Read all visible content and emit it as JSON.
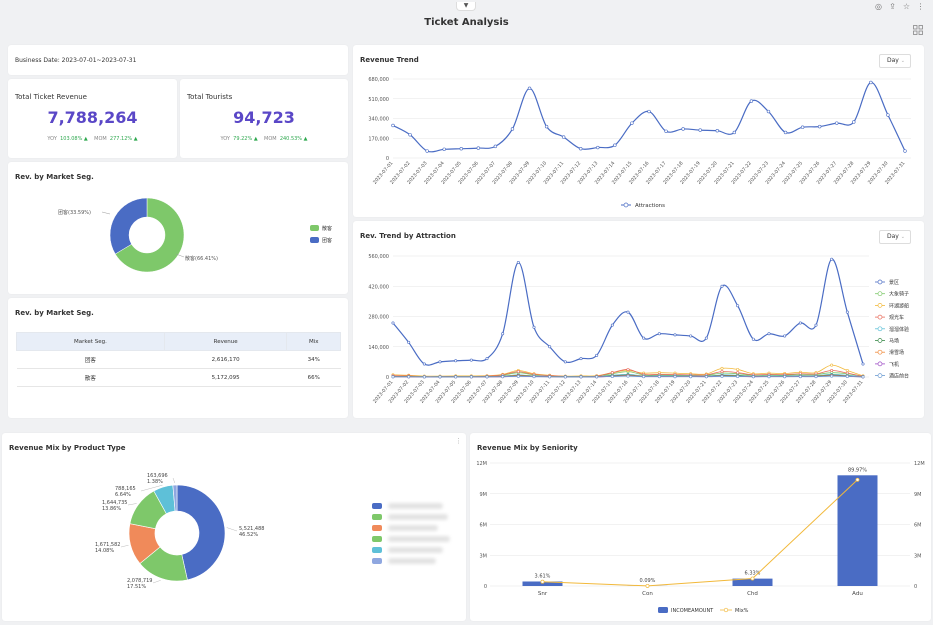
{
  "page": {
    "title": "Ticket Analysis"
  },
  "business_date": {
    "label": "Business Date:",
    "value": "2023-07-01~2023-07-31"
  },
  "kpis": [
    {
      "title": "Total Ticket Revenue",
      "value": "7,788,264",
      "yoy_label": "YOY",
      "yoy": "103.08%",
      "mom_label": "MOM",
      "mom": "277.12%"
    },
    {
      "title": "Total Tourists",
      "value": "94,723",
      "yoy_label": "YOY",
      "yoy": "79.22%",
      "mom_label": "MOM",
      "mom": "240.53%"
    }
  ],
  "market_seg_donut": {
    "title": "Rev. by Market Seg.",
    "label_a": "团客(33.59%)",
    "label_b": "散客(66.41%)",
    "legend": [
      "散客",
      "团客"
    ]
  },
  "market_seg_table": {
    "title": "Rev. by Market Seg.",
    "headers": [
      "Market Seg.",
      "Revenue",
      "Mix"
    ],
    "rows": [
      [
        "团客",
        "2,616,170",
        "34%"
      ],
      [
        "散客",
        "5,172,095",
        "66%"
      ]
    ]
  },
  "revenue_trend": {
    "title": "Revenue Trend",
    "granularity": "Day"
  },
  "attraction_trend": {
    "title": "Rev. Trend by Attraction",
    "granularity": "Day"
  },
  "product_mix": {
    "title": "Revenue Mix by Product Type",
    "more": "⋮"
  },
  "seniority_mix": {
    "title": "Revenue Mix by Seniority"
  },
  "colors": {
    "primary": "#4a6cc4",
    "purple_kpi": "#5a47c7",
    "green": "#2fa84f",
    "orange": "#f2b93b"
  },
  "chart_data": [
    {
      "type": "line",
      "title": "Revenue Trend",
      "x": [
        "2023-07-01",
        "2023-07-02",
        "2023-07-03",
        "2023-07-04",
        "2023-07-05",
        "2023-07-06",
        "2023-07-07",
        "2023-07-08",
        "2023-07-09",
        "2023-07-10",
        "2023-07-11",
        "2023-07-12",
        "2023-07-13",
        "2023-07-14",
        "2023-07-15",
        "2023-07-16",
        "2023-07-17",
        "2023-07-18",
        "2023-07-19",
        "2023-07-20",
        "2023-07-21",
        "2023-07-22",
        "2023-07-23",
        "2023-07-24",
        "2023-07-25",
        "2023-07-26",
        "2023-07-27",
        "2023-07-28",
        "2023-07-29",
        "2023-07-30",
        "2023-07-31"
      ],
      "y_ticks": [
        "0",
        "170,000",
        "340,000",
        "510,000",
        "680,000"
      ],
      "ylim": [
        0,
        680000
      ],
      "legend": [
        "Attractions"
      ],
      "series": [
        {
          "name": "Attractions",
          "values": [
            280000,
            200000,
            60000,
            75000,
            80000,
            85000,
            100000,
            250000,
            600000,
            270000,
            180000,
            80000,
            90000,
            110000,
            300000,
            400000,
            230000,
            250000,
            240000,
            235000,
            220000,
            490000,
            400000,
            220000,
            265000,
            270000,
            300000,
            310000,
            650000,
            370000,
            60000
          ]
        }
      ]
    },
    {
      "type": "line",
      "title": "Rev. Trend by Attraction",
      "x": [
        "2023-07-01",
        "2023-07-02",
        "2023-07-03",
        "2023-07-04",
        "2023-07-05",
        "2023-07-06",
        "2023-07-07",
        "2023-07-08",
        "2023-07-09",
        "2023-07-10",
        "2023-07-11",
        "2023-07-12",
        "2023-07-13",
        "2023-07-14",
        "2023-07-15",
        "2023-07-16",
        "2023-07-17",
        "2023-07-18",
        "2023-07-19",
        "2023-07-20",
        "2023-07-21",
        "2023-07-22",
        "2023-07-23",
        "2023-07-24",
        "2023-07-25",
        "2023-07-26",
        "2023-07-27",
        "2023-07-28",
        "2023-07-29",
        "2023-07-30",
        "2023-07-31"
      ],
      "y_ticks": [
        "0",
        "140,000",
        "280,000",
        "420,000",
        "560,000"
      ],
      "ylim": [
        0,
        560000
      ],
      "legend_position": "right",
      "series": [
        {
          "name": "景区",
          "color": "#4a6cc4",
          "values": [
            250000,
            160000,
            60000,
            70000,
            75000,
            78000,
            85000,
            200000,
            530000,
            230000,
            140000,
            70000,
            85000,
            100000,
            240000,
            300000,
            180000,
            200000,
            195000,
            190000,
            180000,
            420000,
            330000,
            175000,
            200000,
            190000,
            250000,
            240000,
            545000,
            300000,
            60000
          ]
        },
        {
          "name": "大象骑子",
          "color": "#7ec86a",
          "values": [
            5000,
            4000,
            2000,
            2000,
            3000,
            3000,
            4000,
            8000,
            20000,
            10000,
            6000,
            3000,
            3000,
            4000,
            15000,
            25000,
            10000,
            10000,
            9000,
            9000,
            8000,
            18000,
            15000,
            8000,
            10000,
            9000,
            12000,
            12000,
            20000,
            15000,
            3000
          ]
        },
        {
          "name": "环湖游船",
          "color": "#f2b93b",
          "values": [
            10000,
            8000,
            4000,
            4000,
            5000,
            5000,
            6000,
            12000,
            30000,
            15000,
            8000,
            4000,
            5000,
            6000,
            20000,
            30000,
            18000,
            20000,
            18000,
            15000,
            14000,
            40000,
            35000,
            15000,
            18000,
            16000,
            22000,
            20000,
            55000,
            30000,
            5000
          ]
        },
        {
          "name": "观光车",
          "color": "#e86b5a",
          "values": [
            6000,
            5000,
            2000,
            2000,
            3000,
            3000,
            4000,
            10000,
            25000,
            12000,
            6000,
            3000,
            3000,
            4000,
            20000,
            35000,
            12000,
            12000,
            11000,
            10000,
            10000,
            25000,
            20000,
            10000,
            12000,
            11000,
            15000,
            14000,
            30000,
            18000,
            3000
          ]
        },
        {
          "name": "溜溜体验",
          "color": "#5ec0d8",
          "values": [
            3000,
            2000,
            1000,
            1000,
            1500,
            1500,
            2000,
            4000,
            10000,
            5000,
            3000,
            1500,
            1500,
            2000,
            8000,
            12000,
            5000,
            6000,
            5000,
            5000,
            4000,
            10000,
            8000,
            4000,
            5000,
            5000,
            6000,
            6000,
            12000,
            8000,
            1500
          ]
        },
        {
          "name": "马场",
          "color": "#3a8a4a",
          "values": [
            2000,
            1500,
            800,
            800,
            1000,
            1000,
            1500,
            3000,
            8000,
            4000,
            2000,
            1000,
            1000,
            1500,
            6000,
            9000,
            4000,
            4000,
            3500,
            3500,
            3000,
            7000,
            6000,
            3000,
            3500,
            3500,
            4500,
            4500,
            9000,
            5000,
            1000
          ]
        },
        {
          "name": "滑雪场",
          "color": "#f08a3a",
          "values": [
            1500,
            1000,
            500,
            500,
            800,
            800,
            1000,
            2000,
            6000,
            3000,
            1500,
            800,
            800,
            1000,
            4000,
            7000,
            3000,
            3000,
            2500,
            2500,
            2000,
            5000,
            4000,
            2000,
            2500,
            2500,
            3000,
            3000,
            7000,
            4000,
            800
          ]
        },
        {
          "name": "飞机",
          "color": "#9c4ac4",
          "values": [
            1000,
            800,
            400,
            400,
            500,
            500,
            800,
            1500,
            4000,
            2000,
            1000,
            500,
            500,
            800,
            3000,
            5000,
            2000,
            2000,
            1800,
            1800,
            1500,
            4000,
            3000,
            1500,
            1800,
            1800,
            2000,
            2000,
            5000,
            3000,
            500
          ]
        },
        {
          "name": "酒店前台",
          "color": "#6b9bd1",
          "values": [
            800,
            600,
            300,
            300,
            400,
            400,
            600,
            1200,
            3000,
            1500,
            800,
            400,
            400,
            600,
            2500,
            4000,
            1500,
            1500,
            1400,
            1400,
            1200,
            3000,
            2500,
            1200,
            1400,
            1400,
            1600,
            1600,
            4000,
            2500,
            400
          ]
        }
      ]
    },
    {
      "type": "pie",
      "title": "Rev. by Market Seg.",
      "categories": [
        "散客",
        "团客"
      ],
      "values": [
        66.41,
        33.59
      ],
      "colors": [
        "#7ec86a",
        "#4a6cc4"
      ]
    },
    {
      "type": "pie",
      "title": "Revenue Mix by Product Type",
      "categories": [
        "",
        "",
        "",
        "",
        "",
        ""
      ],
      "values": [
        5521488,
        2078719,
        1671582,
        1644735,
        788165,
        163696
      ],
      "labels": [
        [
          "5,521,488",
          "46.52%"
        ],
        [
          "2,078,719",
          "17.51%"
        ],
        [
          "1,671,582",
          "14.08%"
        ],
        [
          "1,644,735",
          "13.86%"
        ],
        [
          "788,165",
          "6.64%"
        ],
        [
          "163,696",
          "1.38%"
        ]
      ],
      "colors": [
        "#4a6cc4",
        "#7ec86a",
        "#f08a5a",
        "#7ec86a",
        "#5ec0d8",
        "#8fa7e0"
      ]
    },
    {
      "type": "bar",
      "title": "Revenue Mix by Seniority",
      "categories": [
        "Snr",
        "Con",
        "Chd",
        "Adu"
      ],
      "y_ticks": [
        "0",
        "3M",
        "6M",
        "9M",
        "12M"
      ],
      "ylim": [
        0,
        12000000
      ],
      "legend": [
        "INCOMEAMOUNT",
        "Mix%"
      ],
      "series": [
        {
          "name": "INCOMEAMOUNT",
          "values": [
            440000,
            10000,
            720000,
            10800000
          ]
        },
        {
          "name": "Mix%",
          "values": [
            3.61,
            0.09,
            6.33,
            89.97
          ],
          "labels": [
            "3.61%",
            "0.09%",
            "6.33%",
            "89.97%"
          ]
        }
      ]
    }
  ]
}
